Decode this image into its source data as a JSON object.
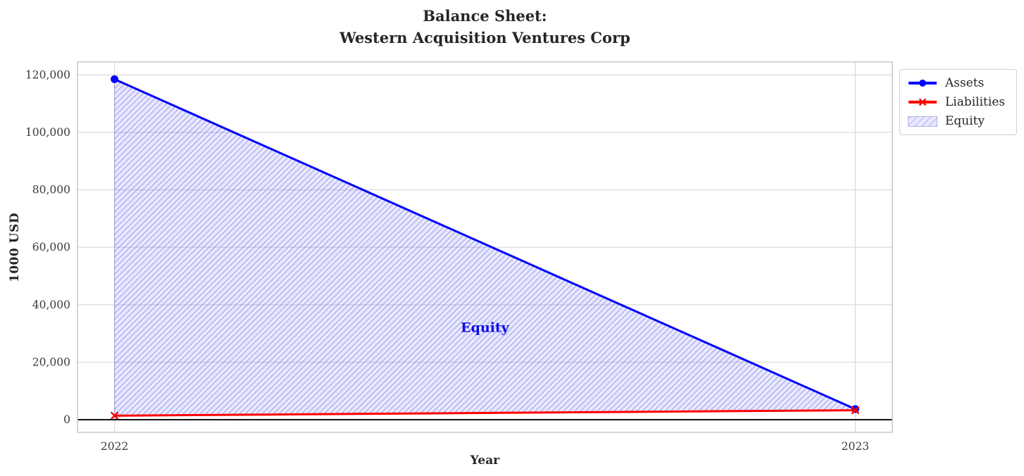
{
  "chart_data": {
    "type": "line+area",
    "title_lines": [
      "Balance Sheet:",
      "Western Acquisition Ventures Corp"
    ],
    "xlabel": "Year",
    "ylabel": "1000 USD",
    "x": [
      2022,
      2023
    ],
    "series": [
      {
        "name": "Assets",
        "values": [
          118500,
          3700
        ],
        "color": "#0000ff",
        "marker": "circle"
      },
      {
        "name": "Liabilities",
        "values": [
          1400,
          3300
        ],
        "color": "#ff0000",
        "marker": "x"
      }
    ],
    "area": {
      "name": "Equity",
      "between": [
        "Liabilities",
        "Assets"
      ],
      "fill_color": "rgba(0,0,255,0.085)",
      "hatch_color": "rgba(60,60,215,0.30)",
      "hatch_style": "//"
    },
    "annotation": {
      "text": "Equity",
      "x": 2022.5,
      "y": 32000,
      "color": "#0a0ae6"
    },
    "xlim": [
      2021.95,
      2023.05
    ],
    "ylim": [
      -4400,
      124500
    ],
    "yticks": [
      0,
      20000,
      40000,
      60000,
      80000,
      100000,
      120000
    ],
    "ytick_labels": [
      "0",
      "20,000",
      "40,000",
      "60,000",
      "80,000",
      "100,000",
      "120,000"
    ],
    "xticks": [
      2022,
      2023
    ],
    "xtick_labels": [
      "2022",
      "2023"
    ],
    "zero_line_y": 0,
    "grid": true,
    "legend": {
      "position": "outside-top-right",
      "items": [
        {
          "label": "Assets",
          "swatch": "line-circle",
          "color": "#0000ff"
        },
        {
          "label": "Liabilities",
          "swatch": "line-x",
          "color": "#ff0000"
        },
        {
          "label": "Equity",
          "swatch": "hatch-patch"
        }
      ]
    },
    "colors": {
      "grid": "#d9d9d9",
      "spine": "#c2c2c2",
      "title_text": "#262626",
      "tick_text": "#3a3a3a",
      "zero_line": "#000000",
      "legend_border": "#cfcfcf",
      "equity_swatch_edge": "#b2b2e8"
    }
  }
}
